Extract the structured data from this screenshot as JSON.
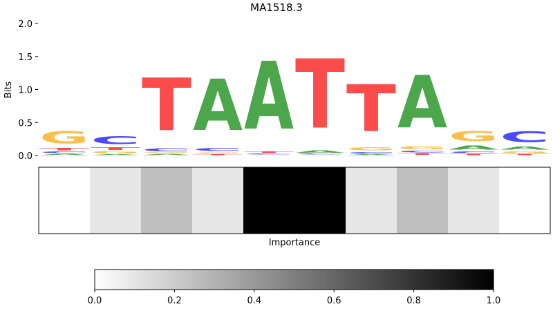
{
  "chart_data": {
    "type": "sequence_logo",
    "title": "MA1518.3",
    "ylabel": "Bits",
    "ylim": [
      0,
      2.0
    ],
    "yticks": [
      0.0,
      0.5,
      1.0,
      1.5,
      2.0
    ],
    "ytick_labels": [
      "0.0",
      "0.5",
      "1.0",
      "1.5",
      "2.0"
    ],
    "colors": {
      "A": "#4ca64c",
      "C": "#4b4bfb",
      "G": "#fdbf4c",
      "T": "#fb4b4b"
    },
    "positions": [
      {
        "A": 0.03,
        "C": 0.04,
        "T": 0.05,
        "G": 0.3
      },
      {
        "A": 0.02,
        "G": 0.05,
        "T": 0.06,
        "C": 0.2
      },
      {
        "A": 0.03,
        "G": 0.02,
        "C": 0.07,
        "T": 1.28
      },
      {
        "T": 0.02,
        "G": 0.03,
        "C": 0.08,
        "A": 1.25
      },
      {
        "G": 0.01,
        "C": 0.02,
        "T": 0.04,
        "A": 1.65
      },
      {
        "G": 0.01,
        "C": 0.02,
        "A": 0.05,
        "T": 1.68
      },
      {
        "A": 0.02,
        "C": 0.04,
        "G": 0.08,
        "T": 1.14
      },
      {
        "T": 0.04,
        "C": 0.04,
        "G": 0.08,
        "A": 1.28
      },
      {
        "T": 0.03,
        "C": 0.04,
        "A": 0.1,
        "G": 0.24
      },
      {
        "T": 0.03,
        "G": 0.04,
        "A": 0.08,
        "C": 0.26
      }
    ],
    "importance": {
      "xlabel": "Importance",
      "values": [
        0.0,
        0.1,
        0.25,
        0.1,
        1.0,
        1.0,
        0.1,
        0.25,
        0.1,
        0.0
      ]
    },
    "colorbar": {
      "range": [
        0.0,
        1.0
      ],
      "ticks": [
        0.0,
        0.2,
        0.4,
        0.6,
        0.8,
        1.0
      ],
      "tick_labels": [
        "0.0",
        "0.2",
        "0.4",
        "0.6",
        "0.8",
        "1.0"
      ]
    }
  }
}
